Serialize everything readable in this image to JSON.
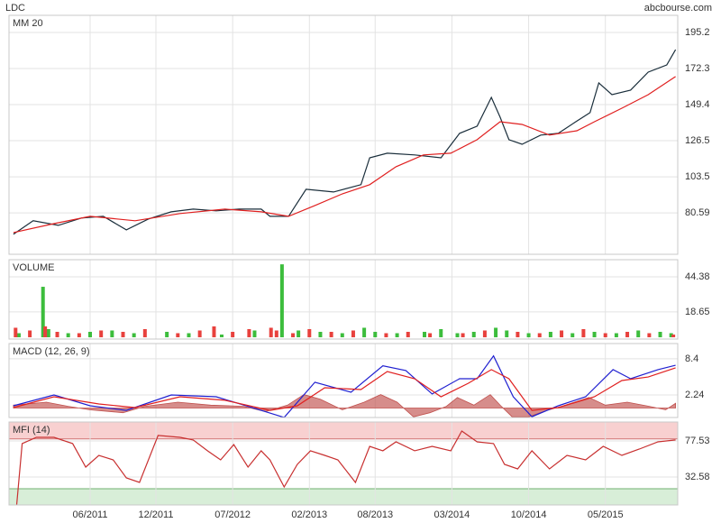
{
  "header": {
    "symbol": "LDC",
    "source": "abcbourse.com"
  },
  "chart_data": [
    {
      "type": "line",
      "title_color": "#d00000",
      "xlim": [
        -2.4,
        58.6
      ],
      "ylim": [
        54.3,
        206.1
      ],
      "yticks": [
        195.2,
        172.3,
        149.4,
        126.5,
        103.5,
        80.59
      ],
      "grid": true,
      "xticks": [
        5,
        11,
        18,
        25,
        31,
        38,
        45,
        52
      ],
      "series": [
        {
          "color": "#1a2e3b",
          "x": [
            -2.0,
            -0.2,
            2.1,
            4.2,
            6.2,
            8.3,
            10.3,
            12.4,
            14.4,
            16.5,
            18.6,
            20.6,
            21.4,
            23.1,
            24.7,
            27.2,
            29.7,
            30.5,
            32.1,
            34.6,
            37.0,
            38.7,
            40.3,
            41.6,
            42.4,
            43.2,
            44.4,
            46.1,
            47.7,
            49.3,
            50.6,
            51.4,
            52.6,
            54.3,
            55.9,
            57.6,
            58.4
          ],
          "values": [
            67.0,
            75.6,
            72.7,
            77.3,
            78.4,
            69.8,
            76.7,
            81.3,
            83.0,
            81.9,
            83.0,
            83.0,
            78.4,
            78.4,
            95.6,
            93.9,
            98.5,
            115.6,
            118.5,
            117.4,
            115.6,
            131.1,
            135.7,
            154.0,
            141.4,
            127.1,
            124.2,
            130.0,
            131.1,
            138.5,
            144.3,
            163.2,
            155.7,
            158.6,
            170.0,
            174.6,
            184.3
          ]
        },
        {
          "name": "MM 20",
          "color": "#e02020",
          "x": [
            -2.0,
            1.7,
            5.0,
            9.1,
            13.2,
            17.3,
            20.6,
            23.1,
            25.5,
            28.0,
            30.5,
            32.9,
            35.4,
            37.9,
            40.3,
            42.4,
            44.4,
            46.9,
            49.4,
            51.0,
            53.5,
            55.9,
            58.4
          ],
          "values": [
            68.1,
            73.8,
            78.4,
            75.6,
            80.2,
            83.0,
            81.3,
            78.4,
            85.3,
            92.7,
            98.5,
            109.9,
            117.4,
            118.5,
            127.1,
            138.5,
            136.8,
            130.0,
            132.8,
            138.5,
            147.1,
            155.7,
            167.2
          ]
        }
      ]
    },
    {
      "type": "bar",
      "title": "VOLUME",
      "title_color": "#2ca02c",
      "xlim": [
        -2.4,
        58.6
      ],
      "ylim": [
        -1.3,
        57.0
      ],
      "yticks": [
        44.38,
        18.65
      ],
      "grid": true,
      "xticks": [
        5,
        11,
        18,
        25,
        31,
        38,
        45,
        52
      ],
      "series": [
        {
          "color": "#3cbd3c",
          "x": [
            -1.5,
            0.7,
            1.2,
            3,
            5,
            7,
            9,
            12,
            14,
            17,
            20,
            22.5,
            24,
            26,
            28,
            30,
            31,
            33,
            35.5,
            37,
            38.5,
            40,
            42,
            43,
            45,
            47,
            49,
            51,
            53,
            55,
            57,
            58
          ],
          "values": [
            3,
            37.1,
            6,
            3,
            4,
            5,
            3,
            4,
            3,
            2,
            5,
            53.6,
            5,
            4,
            3,
            7,
            4,
            3,
            4,
            6,
            3,
            4,
            7,
            5,
            3,
            4,
            3,
            4,
            3,
            5,
            4,
            3
          ]
        },
        {
          "color": "#e8413d",
          "x": [
            -1.8,
            -0.5,
            0.9,
            2,
            4,
            6,
            8,
            10,
            13,
            15,
            16.3,
            18,
            19.5,
            21.5,
            22,
            23.5,
            25,
            27,
            29,
            32,
            34,
            36,
            39,
            41,
            44,
            46,
            48,
            50,
            52,
            54,
            56,
            58.2
          ],
          "values": [
            7,
            5,
            8,
            4,
            3,
            5,
            4,
            6,
            3,
            5,
            8,
            4,
            6,
            7,
            5,
            3,
            6,
            4,
            5,
            3,
            4,
            3,
            3,
            5,
            4,
            3,
            5,
            6,
            3,
            4,
            3,
            2
          ]
        }
      ]
    },
    {
      "type": "line",
      "title": "MACD (12, 26, 9)",
      "title_color": "#1a1aa8",
      "xlim": [
        -2.4,
        58.6
      ],
      "ylim": [
        -1.61,
        11.0
      ],
      "yticks": [
        8.4,
        2.24
      ],
      "grid": true,
      "xticks": [
        5,
        11,
        18,
        25,
        31,
        38,
        45,
        52
      ],
      "series": [
        {
          "type": "area",
          "color": "#c0504d",
          "x": [
            -2,
            1,
            3,
            5,
            8,
            10,
            13,
            16,
            19,
            21,
            23,
            24.5,
            26,
            28,
            30,
            31.5,
            33,
            34.5,
            36,
            37.5,
            38.5,
            40,
            41.5,
            42.5,
            43.5,
            45,
            46.5,
            48,
            50.5,
            52,
            54,
            56,
            57.5,
            58.4
          ],
          "values": [
            0.5,
            1.0,
            0.3,
            -0.3,
            -0.8,
            0.3,
            1.0,
            0.5,
            0.3,
            -0.6,
            0.5,
            2.3,
            1.5,
            -0.3,
            1.0,
            2.3,
            1.0,
            -1.5,
            -0.8,
            0.3,
            1.8,
            0.5,
            2.3,
            0.3,
            -1.5,
            -1.5,
            -0.5,
            0.3,
            1.8,
            0.5,
            1.0,
            0.3,
            -0.3,
            0.8
          ]
        },
        {
          "color": "#2020d0",
          "x": [
            -2.0,
            1.7,
            5.0,
            8.3,
            12.4,
            16.5,
            20.6,
            22.7,
            25.5,
            28.8,
            31.7,
            33.8,
            36.2,
            38.7,
            40.3,
            41.8,
            43.6,
            45.3,
            47.7,
            50.2,
            52.7,
            54.3,
            56.8,
            58.4
          ],
          "values": [
            0.39,
            2.24,
            0.39,
            -0.39,
            2.24,
            1.93,
            -0.39,
            -1.6,
            4.4,
            2.7,
            7.2,
            6.4,
            2.4,
            5.0,
            5.0,
            8.9,
            1.93,
            -1.47,
            0.39,
            1.93,
            6.55,
            5.0,
            6.55,
            7.3
          ]
        },
        {
          "color": "#e02020",
          "x": [
            -2.0,
            1.7,
            5.8,
            9.1,
            13.2,
            17.3,
            21.4,
            23.9,
            26.4,
            29.7,
            32.1,
            34.6,
            37.0,
            39.5,
            41.6,
            43.2,
            45.3,
            47.7,
            51.0,
            53.5,
            55.9,
            58.4
          ],
          "values": [
            0.08,
            1.93,
            0.7,
            0.08,
            1.93,
            1.32,
            -0.39,
            0.39,
            3.47,
            3.16,
            6.24,
            5.0,
            1.93,
            4.24,
            6.55,
            5.0,
            -0.39,
            0.08,
            1.93,
            4.7,
            5.3,
            6.86
          ]
        }
      ]
    },
    {
      "type": "line",
      "title": "MFI (14)",
      "title_color": "#d00000",
      "xlim": [
        -2.4,
        58.6
      ],
      "ylim": [
        -2.3,
        101.1
      ],
      "yticks": [
        77.53,
        32.58
      ],
      "grid": true,
      "xticks": [
        {
          "value": 5,
          "label": "06/2011"
        },
        {
          "value": 11,
          "label": "12/2011"
        },
        {
          "value": 18,
          "label": "07/2012"
        },
        {
          "value": 25,
          "label": "02/2013"
        },
        {
          "value": 31,
          "label": "08/2013"
        },
        {
          "value": 38,
          "label": "03/2014"
        },
        {
          "value": 45,
          "label": "10/2014"
        },
        {
          "value": 52,
          "label": "05/2015"
        }
      ],
      "bands": [
        {
          "from": 80,
          "to": 101.1,
          "color": "#f8d0d0",
          "edge": "#d07070"
        },
        {
          "from": -2.3,
          "to": 18,
          "color": "#d8eed8",
          "edge": "#70b070"
        }
      ],
      "series": [
        {
          "color": "#c83030",
          "x": [
            -1.7,
            -1.2,
            0.1,
            1.7,
            3.4,
            4.6,
            5.8,
            7.1,
            8.3,
            9.5,
            11.2,
            13.2,
            14.4,
            15.7,
            16.9,
            18.1,
            19.4,
            20.6,
            21.4,
            22.7,
            23.9,
            25.1,
            26.4,
            27.6,
            29.2,
            30.5,
            31.7,
            32.9,
            34.6,
            36.2,
            37.9,
            38.9,
            40.3,
            41.8,
            42.8,
            44.0,
            45.3,
            46.9,
            48.5,
            50.2,
            51.8,
            53.5,
            55.1,
            56.8,
            58.4
          ],
          "values": [
            -2.3,
            74.2,
            82.0,
            82.0,
            74.2,
            44.9,
            59.5,
            53.9,
            31.4,
            25.8,
            84.3,
            82.0,
            78.7,
            65.2,
            53.9,
            73.0,
            44.9,
            65.2,
            53.9,
            20.2,
            48.3,
            65.2,
            59.5,
            53.9,
            25.8,
            70.8,
            65.2,
            76.4,
            65.2,
            70.8,
            65.2,
            89.9,
            76.4,
            74.2,
            48.3,
            42.7,
            65.2,
            42.7,
            59.5,
            53.9,
            70.8,
            59.5,
            67.4,
            76.4,
            78.7
          ]
        }
      ]
    }
  ]
}
